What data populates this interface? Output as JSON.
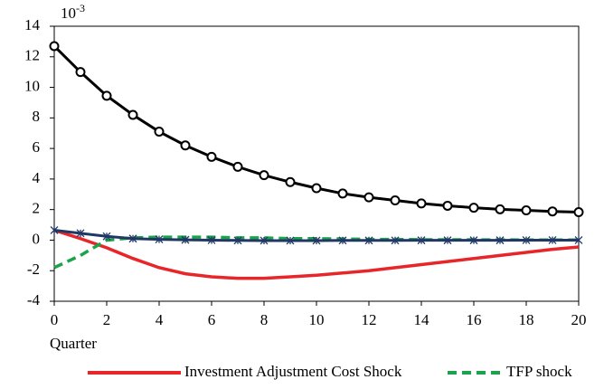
{
  "chart_data": {
    "type": "line",
    "y_scale_base": "10",
    "y_scale_exponent": "-3",
    "x_label": "Quarter",
    "x": [
      0,
      1,
      2,
      3,
      4,
      5,
      6,
      7,
      8,
      9,
      10,
      11,
      12,
      13,
      14,
      15,
      16,
      17,
      18,
      19,
      20
    ],
    "xlim": [
      0,
      20
    ],
    "xticks": [
      0,
      2,
      4,
      6,
      8,
      10,
      12,
      14,
      16,
      18,
      20
    ],
    "ylim": [
      -4,
      14
    ],
    "yticks": [
      -4,
      -2,
      0,
      2,
      4,
      6,
      8,
      10,
      12,
      14
    ],
    "grid": false,
    "series": [
      {
        "color": "#000000",
        "marker": "circle",
        "dashed": false,
        "values": [
          12.7,
          11.0,
          9.45,
          8.2,
          7.1,
          6.2,
          5.45,
          4.8,
          4.25,
          3.8,
          3.4,
          3.05,
          2.8,
          2.6,
          2.4,
          2.25,
          2.12,
          2.02,
          1.95,
          1.88,
          1.83
        ]
      },
      {
        "name": "Investment Adjustment Cost Shock",
        "color": "#e8262a",
        "marker": null,
        "dashed": false,
        "values": [
          0.65,
          0.1,
          -0.5,
          -1.2,
          -1.8,
          -2.2,
          -2.4,
          -2.5,
          -2.5,
          -2.4,
          -2.3,
          -2.15,
          -2.0,
          -1.8,
          -1.6,
          -1.4,
          -1.2,
          -1.0,
          -0.8,
          -0.6,
          -0.45
        ]
      },
      {
        "name": "TFP shock",
        "color": "#1aa34a",
        "marker": null,
        "dashed": true,
        "values": [
          -1.8,
          -1.0,
          0.0,
          0.15,
          0.2,
          0.2,
          0.2,
          0.15,
          0.15,
          0.1,
          0.1,
          0.08,
          0.05,
          0.05,
          0.03,
          0.03,
          0.02,
          0.02,
          0.01,
          0.01,
          0.01
        ]
      },
      {
        "color": "#1f3864",
        "marker": "asterisk",
        "dashed": false,
        "values": [
          0.65,
          0.45,
          0.25,
          0.1,
          0.05,
          0.02,
          0,
          -0.02,
          -0.03,
          -0.03,
          -0.03,
          -0.02,
          -0.02,
          -0.02,
          -0.01,
          -0.01,
          -0.01,
          -0.01,
          0,
          0,
          0
        ]
      }
    ],
    "legend_position": "bottom"
  }
}
